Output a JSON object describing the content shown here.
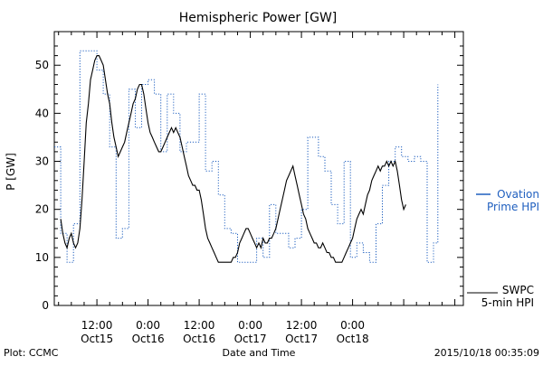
{
  "chart_data": {
    "type": "line",
    "title": "Hemispheric Power [GW]",
    "ylabel": "P [GW]",
    "xlabel": "Date and Time",
    "ylim": [
      0,
      57
    ],
    "xlim_hours": [
      -22,
      74
    ],
    "y_ticks": [
      0,
      10,
      20,
      30,
      40,
      50
    ],
    "x_ticks": [
      {
        "label": [
          "12:00",
          "Oct15"
        ]
      },
      {
        "label": [
          "0:00",
          "Oct16"
        ]
      },
      {
        "label": [
          "12:00",
          "Oct16"
        ]
      },
      {
        "label": [
          "0:00",
          "Oct17"
        ]
      },
      {
        "label": [
          "12:00",
          "Oct17"
        ]
      },
      {
        "label": [
          "0:00",
          "Oct18"
        ]
      }
    ],
    "grid": false,
    "series": [
      {
        "name": "Ovation Prime HPI",
        "legend_lines": [
          "Ovation",
          "Prime HPI"
        ],
        "color": "#1f5fbf",
        "style": "dotted-step",
        "values": [
          [
            -22,
            33
          ],
          [
            -20.5,
            33
          ],
          [
            -20.5,
            15
          ],
          [
            -19,
            15
          ],
          [
            -19,
            9
          ],
          [
            -17.5,
            9
          ],
          [
            -17.5,
            17
          ],
          [
            -16,
            17
          ],
          [
            -16,
            53
          ],
          [
            -12,
            53
          ],
          [
            -12,
            49
          ],
          [
            -10.5,
            49
          ],
          [
            -10.5,
            44
          ],
          [
            -9,
            44
          ],
          [
            -9,
            33
          ],
          [
            -7.5,
            33
          ],
          [
            -7.5,
            14
          ],
          [
            -6,
            14
          ],
          [
            -6,
            16
          ],
          [
            -4.5,
            16
          ],
          [
            -4.5,
            45
          ],
          [
            -3,
            45
          ],
          [
            -3,
            37
          ],
          [
            -1.5,
            37
          ],
          [
            -1.5,
            46
          ],
          [
            0,
            46
          ],
          [
            0,
            47
          ],
          [
            1.5,
            47
          ],
          [
            1.5,
            44
          ],
          [
            3,
            44
          ],
          [
            3,
            32
          ],
          [
            4.5,
            32
          ],
          [
            4.5,
            44
          ],
          [
            6,
            44
          ],
          [
            6,
            40
          ],
          [
            7.5,
            40
          ],
          [
            7.5,
            32
          ],
          [
            9,
            32
          ],
          [
            9,
            34
          ],
          [
            10.5,
            34
          ],
          [
            10.5,
            34
          ],
          [
            12,
            34
          ],
          [
            12,
            44
          ],
          [
            13.5,
            44
          ],
          [
            13.5,
            28
          ],
          [
            15,
            28
          ],
          [
            15,
            30
          ],
          [
            16.5,
            30
          ],
          [
            16.5,
            23
          ],
          [
            18,
            23
          ],
          [
            18,
            16
          ],
          [
            19.5,
            16
          ],
          [
            19.5,
            15
          ],
          [
            21,
            15
          ],
          [
            21,
            9
          ],
          [
            22.5,
            9
          ],
          [
            22.5,
            9
          ],
          [
            24,
            9
          ],
          [
            24,
            9
          ],
          [
            25.5,
            9
          ],
          [
            25.5,
            14
          ],
          [
            27,
            14
          ],
          [
            27,
            10
          ],
          [
            28.5,
            10
          ],
          [
            28.5,
            21
          ],
          [
            30,
            21
          ],
          [
            30,
            15
          ],
          [
            31.5,
            15
          ],
          [
            31.5,
            15
          ],
          [
            33,
            15
          ],
          [
            33,
            12
          ],
          [
            34.5,
            12
          ],
          [
            34.5,
            14
          ],
          [
            36,
            14
          ],
          [
            36,
            20
          ],
          [
            37.5,
            20
          ],
          [
            37.5,
            35
          ],
          [
            40,
            35
          ],
          [
            40,
            31
          ],
          [
            41.5,
            31
          ],
          [
            41.5,
            28
          ],
          [
            43,
            28
          ],
          [
            43,
            21
          ],
          [
            44.5,
            21
          ],
          [
            44.5,
            17
          ],
          [
            46,
            17
          ],
          [
            46,
            30
          ],
          [
            47.5,
            30
          ],
          [
            47.5,
            10
          ],
          [
            49,
            10
          ],
          [
            49,
            13
          ],
          [
            50.5,
            13
          ],
          [
            50.5,
            11
          ],
          [
            52,
            11
          ],
          [
            52,
            9
          ],
          [
            53.5,
            9
          ],
          [
            53.5,
            17
          ],
          [
            55,
            17
          ],
          [
            55,
            25
          ],
          [
            56.5,
            25
          ],
          [
            56.5,
            30
          ],
          [
            58,
            30
          ],
          [
            58,
            33
          ],
          [
            59.5,
            33
          ],
          [
            59.5,
            31
          ],
          [
            61,
            31
          ],
          [
            61,
            30
          ],
          [
            62.5,
            30
          ],
          [
            62.5,
            31
          ],
          [
            64,
            31
          ],
          [
            64,
            30
          ],
          [
            65.5,
            30
          ],
          [
            65.5,
            9
          ],
          [
            67,
            9
          ],
          [
            67,
            13
          ],
          [
            68,
            13
          ],
          [
            68,
            46
          ]
        ]
      },
      {
        "name": "SWPC 5-min HPI",
        "legend_lines": [
          "SWPC",
          "5-min HPI"
        ],
        "color": "#000000",
        "style": "solid",
        "values": [
          [
            -20.5,
            18
          ],
          [
            -20,
            15
          ],
          [
            -19.5,
            13
          ],
          [
            -19,
            12
          ],
          [
            -18.5,
            14
          ],
          [
            -18,
            15
          ],
          [
            -17.5,
            13
          ],
          [
            -17,
            12
          ],
          [
            -16.5,
            13
          ],
          [
            -16,
            16
          ],
          [
            -15.5,
            22
          ],
          [
            -15,
            30
          ],
          [
            -14.5,
            38
          ],
          [
            -14,
            42
          ],
          [
            -13.5,
            47
          ],
          [
            -13,
            49
          ],
          [
            -12.5,
            51
          ],
          [
            -12,
            52
          ],
          [
            -11.5,
            52
          ],
          [
            -11,
            51
          ],
          [
            -10.5,
            50
          ],
          [
            -10,
            47
          ],
          [
            -9.5,
            44
          ],
          [
            -9,
            42
          ],
          [
            -8.5,
            38
          ],
          [
            -8,
            35
          ],
          [
            -7.5,
            33
          ],
          [
            -7,
            31
          ],
          [
            -6.5,
            32
          ],
          [
            -6,
            33
          ],
          [
            -5.5,
            34
          ],
          [
            -5,
            36
          ],
          [
            -4.5,
            38
          ],
          [
            -4,
            40
          ],
          [
            -3.5,
            42
          ],
          [
            -3,
            43
          ],
          [
            -2.5,
            45
          ],
          [
            -2,
            46
          ],
          [
            -1.5,
            46
          ],
          [
            -1,
            44
          ],
          [
            -0.5,
            41
          ],
          [
            0,
            38
          ],
          [
            0.5,
            36
          ],
          [
            1,
            35
          ],
          [
            1.5,
            34
          ],
          [
            2,
            33
          ],
          [
            2.5,
            32
          ],
          [
            3,
            32
          ],
          [
            3.5,
            33
          ],
          [
            4,
            34
          ],
          [
            4.5,
            35
          ],
          [
            5,
            36
          ],
          [
            5.5,
            37
          ],
          [
            6,
            36
          ],
          [
            6.5,
            37
          ],
          [
            7,
            36
          ],
          [
            7.5,
            35
          ],
          [
            8,
            33
          ],
          [
            8.5,
            31
          ],
          [
            9,
            29
          ],
          [
            9.5,
            27
          ],
          [
            10,
            26
          ],
          [
            10.5,
            25
          ],
          [
            11,
            25
          ],
          [
            11.5,
            24
          ],
          [
            12,
            24
          ],
          [
            12.5,
            22
          ],
          [
            13,
            19
          ],
          [
            13.5,
            16
          ],
          [
            14,
            14
          ],
          [
            14.5,
            13
          ],
          [
            15,
            12
          ],
          [
            15.5,
            11
          ],
          [
            16,
            10
          ],
          [
            16.5,
            9
          ],
          [
            17,
            9
          ],
          [
            17.5,
            9
          ],
          [
            18,
            9
          ],
          [
            18.5,
            9
          ],
          [
            19,
            9
          ],
          [
            19.5,
            9
          ],
          [
            20,
            10
          ],
          [
            20.5,
            10
          ],
          [
            21,
            11
          ],
          [
            21.5,
            13
          ],
          [
            22,
            14
          ],
          [
            22.5,
            15
          ],
          [
            23,
            16
          ],
          [
            23.5,
            16
          ],
          [
            24,
            15
          ],
          [
            24.5,
            14
          ],
          [
            25,
            13
          ],
          [
            25.5,
            12
          ],
          [
            26,
            13
          ],
          [
            26.5,
            12
          ],
          [
            27,
            14
          ],
          [
            27.5,
            13
          ],
          [
            28,
            13
          ],
          [
            28.5,
            14
          ],
          [
            29,
            14
          ],
          [
            29.5,
            15
          ],
          [
            30,
            16
          ],
          [
            30.5,
            18
          ],
          [
            31,
            20
          ],
          [
            31.5,
            22
          ],
          [
            32,
            24
          ],
          [
            32.5,
            26
          ],
          [
            33,
            27
          ],
          [
            33.5,
            28
          ],
          [
            34,
            29
          ],
          [
            34.5,
            27
          ],
          [
            35,
            25
          ],
          [
            35.5,
            23
          ],
          [
            36,
            21
          ],
          [
            36.5,
            19
          ],
          [
            37,
            18
          ],
          [
            37.5,
            16
          ],
          [
            38,
            15
          ],
          [
            38.5,
            14
          ],
          [
            39,
            13
          ],
          [
            39.5,
            13
          ],
          [
            40,
            12
          ],
          [
            40.5,
            12
          ],
          [
            41,
            13
          ],
          [
            41.5,
            12
          ],
          [
            42,
            11
          ],
          [
            42.5,
            11
          ],
          [
            43,
            10
          ],
          [
            43.5,
            10
          ],
          [
            44,
            9
          ],
          [
            44.5,
            9
          ],
          [
            45,
            9
          ],
          [
            45.5,
            9
          ],
          [
            46,
            10
          ],
          [
            46.5,
            11
          ],
          [
            47,
            12
          ],
          [
            47.5,
            13
          ],
          [
            48,
            14
          ],
          [
            48.5,
            16
          ],
          [
            49,
            18
          ],
          [
            49.5,
            19
          ],
          [
            50,
            20
          ],
          [
            50.5,
            19
          ],
          [
            51,
            21
          ],
          [
            51.5,
            23
          ],
          [
            52,
            24
          ],
          [
            52.5,
            26
          ],
          [
            53,
            27
          ],
          [
            53.5,
            28
          ],
          [
            54,
            29
          ],
          [
            54.5,
            28
          ],
          [
            55,
            29
          ],
          [
            55.5,
            29
          ],
          [
            56,
            30
          ],
          [
            56.5,
            29
          ],
          [
            57,
            30
          ],
          [
            57.5,
            29
          ],
          [
            58,
            30
          ],
          [
            58.5,
            28
          ],
          [
            59,
            25
          ],
          [
            59.5,
            22
          ],
          [
            60,
            20
          ],
          [
            60.5,
            21
          ]
        ]
      }
    ],
    "annotations": {
      "plot_credit": "Plot: CCMC",
      "timestamp": "2015/10/18 00:35:09"
    }
  }
}
